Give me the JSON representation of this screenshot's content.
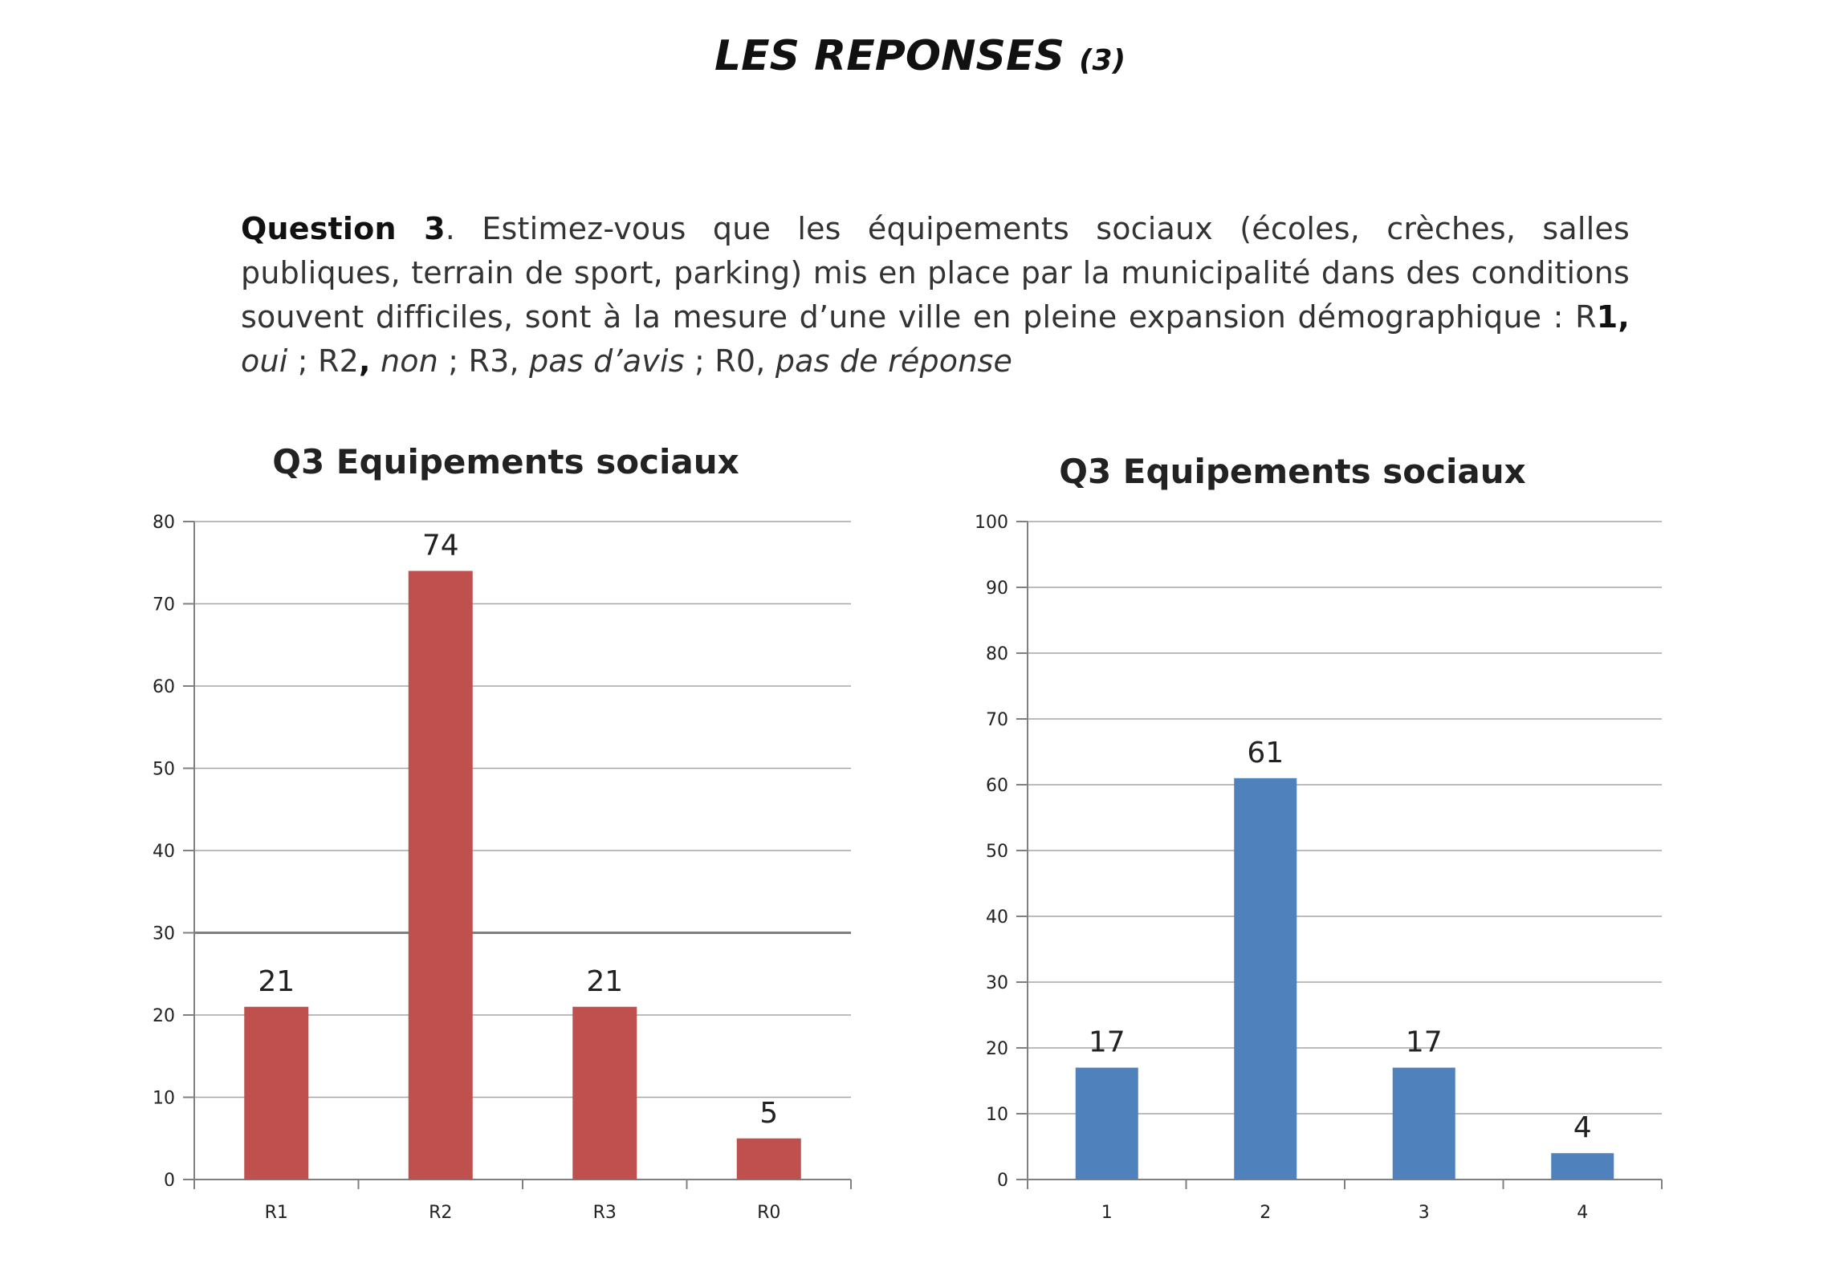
{
  "page": {
    "title": "LES REPONSES",
    "title_suffix": "(3)"
  },
  "question": {
    "label": "Question 3",
    "text": ". Estimez-vous que les équipements sociaux (écoles, crèches, salles publiques, terrain de sport, parking) mis en place par la municipalité dans des conditions souvent difficiles, sont à la mesure d’une ville en pleine expansion démographique : R",
    "opt1_num": "1",
    "opt1_sep": ",",
    "opt1_text": " oui",
    "opt2_prefix": " ; R2",
    "opt2_sep": ",",
    "opt2_text": " non",
    "opt3_prefix": " ; R3,",
    "opt3_text": " pas d’avis",
    "opt0_prefix": " ; R0,",
    "opt0_text": " pas de réponse"
  },
  "chart_data": [
    {
      "type": "bar",
      "title": "Q3 Equipements sociaux",
      "categories": [
        "R1",
        "R2",
        "R3",
        "R0"
      ],
      "values": [
        21,
        74,
        21,
        5
      ],
      "data_labels": [
        "21",
        "74",
        "21",
        "5"
      ],
      "yticks": [
        "0",
        "10",
        "20",
        "30",
        "40",
        "50",
        "60",
        "70",
        "80"
      ],
      "ylim": [
        0,
        80
      ],
      "grid": true,
      "color": "#c0504d"
    },
    {
      "type": "bar",
      "title": "Q3 Equipements sociaux",
      "categories": [
        "1",
        "2",
        "3",
        "4"
      ],
      "values": [
        17,
        61,
        17,
        4
      ],
      "data_labels": [
        "17",
        "61",
        "17",
        "4"
      ],
      "yticks": [
        "0",
        "10",
        "20",
        "30",
        "40",
        "50",
        "60",
        "70",
        "80",
        "90",
        "100"
      ],
      "ylim": [
        0,
        100
      ],
      "grid": true,
      "color": "#4f81bd"
    }
  ]
}
